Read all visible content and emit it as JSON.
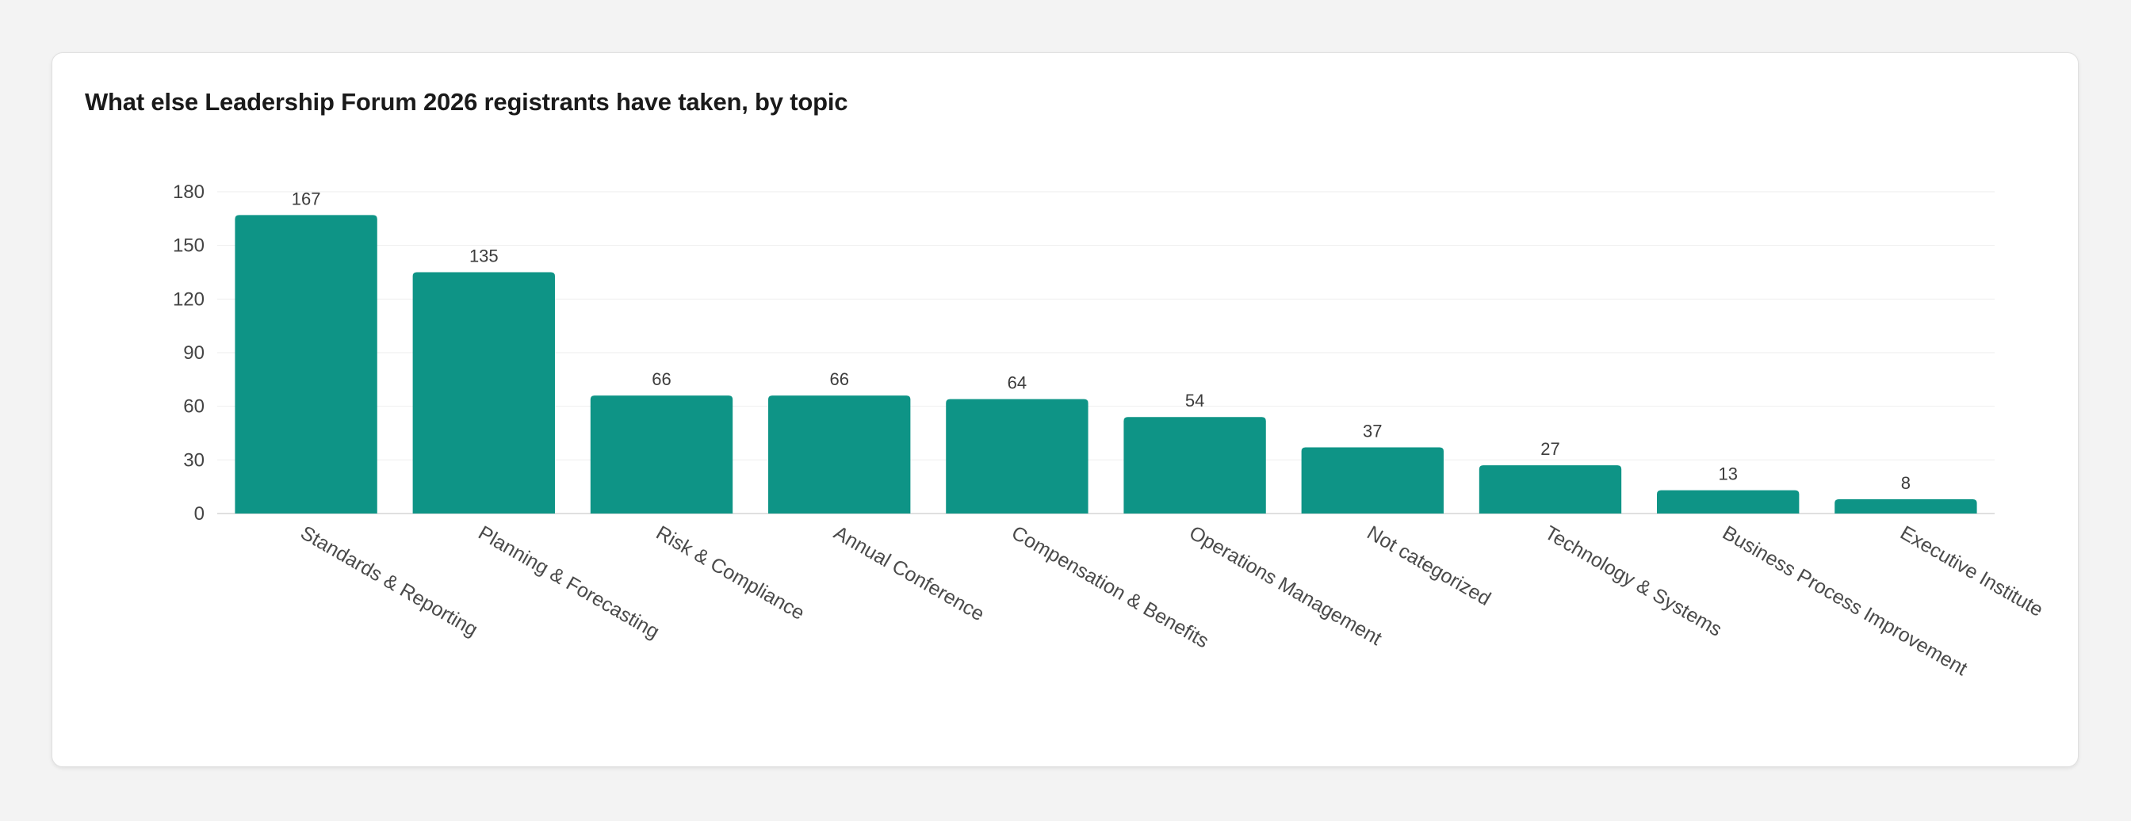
{
  "card": {
    "title": "What else Leadership Forum 2026 registrants have taken, by topic"
  },
  "colors": {
    "bar": "#0e9486",
    "grid": "#eeeeee",
    "axis": "#d6d6d6",
    "background": "#f3f3f3",
    "card": "#ffffff"
  },
  "chart_data": {
    "type": "bar",
    "title": "What else Leadership Forum 2026 registrants have taken, by topic",
    "xlabel": "",
    "ylabel": "",
    "categories": [
      "Standards & Reporting",
      "Planning & Forecasting",
      "Risk & Compliance",
      "Annual Conference",
      "Compensation & Benefits",
      "Operations Management",
      "Not categorized",
      "Technology & Systems",
      "Business Process Improvement",
      "Executive Institute"
    ],
    "values": [
      167,
      135,
      66,
      66,
      64,
      54,
      37,
      27,
      13,
      8
    ],
    "ylim": [
      0,
      180
    ],
    "yticks": [
      0,
      30,
      60,
      90,
      120,
      150,
      180
    ],
    "grid": true,
    "legend": "none",
    "data_labels": true
  }
}
